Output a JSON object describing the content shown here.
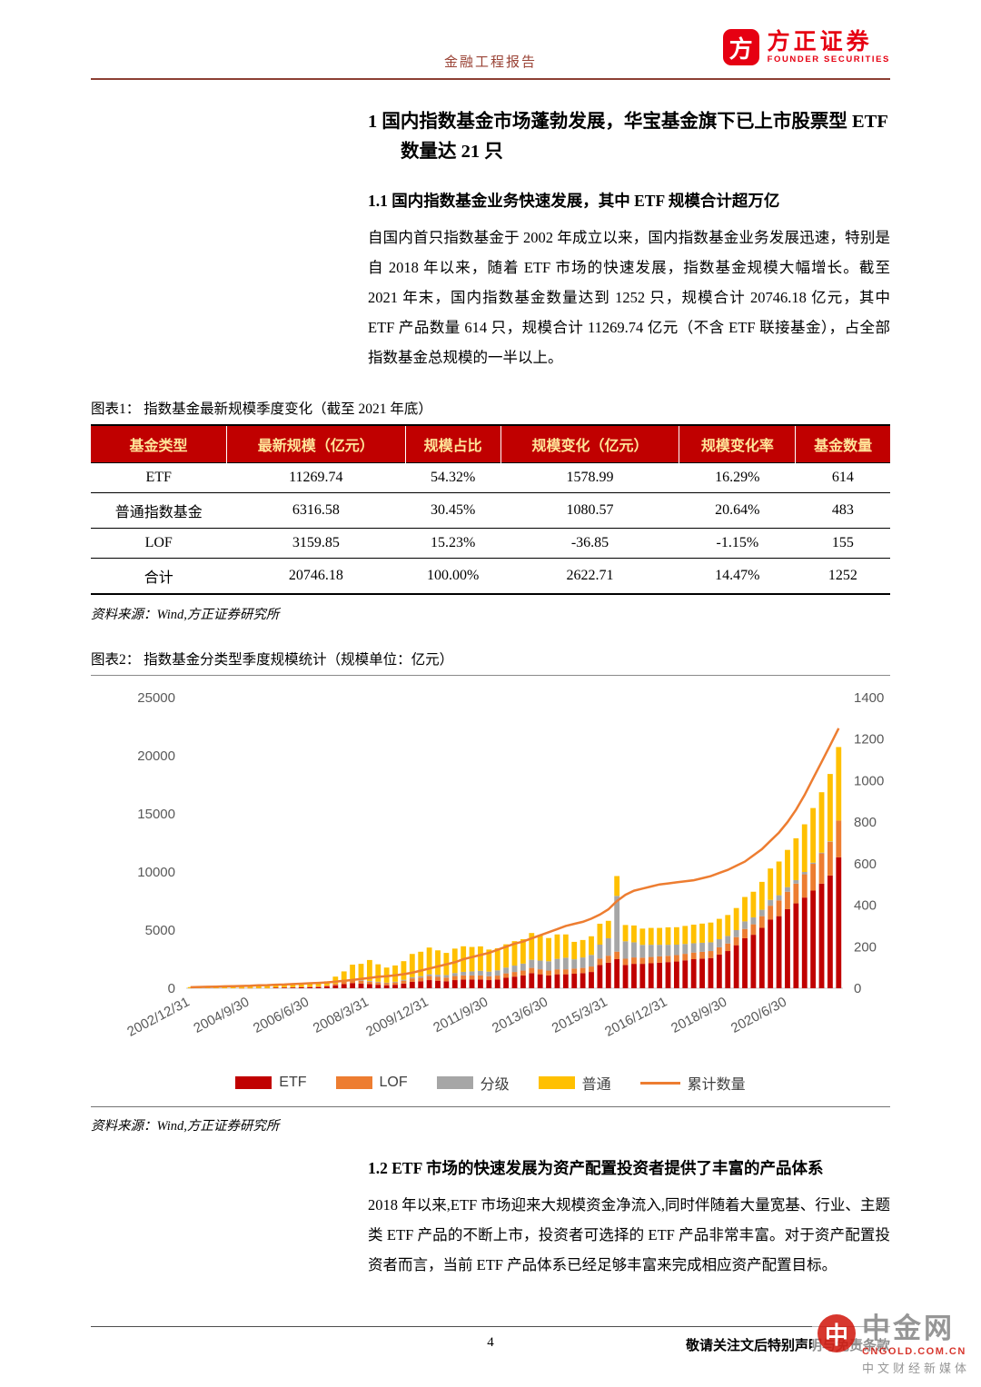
{
  "header": {
    "report_type": "金融工程报告",
    "brand_cn": "方正证券",
    "brand_en": "FOUNDER SECURITIES",
    "logo_glyph": "方"
  },
  "section1": {
    "heading": "1  国内指数基金市场蓬勃发展，华宝基金旗下已上市股票型 ETF 数量达 21 只",
    "sub1_1": {
      "heading": "1.1  国内指数基金业务快速发展，其中 ETF 规模合计超万亿",
      "paragraph": "自国内首只指数基金于 2002 年成立以来，国内指数基金业务发展迅速，特别是自 2018 年以来，随着 ETF 市场的快速发展，指数基金规模大幅增长。截至 2021 年末，国内指数基金数量达到 1252 只，规模合计 20746.18 亿元，其中 ETF 产品数量 614 只，规模合计 11269.74 亿元（不含 ETF 联接基金），占全部指数基金总规模的一半以上。"
    },
    "sub1_2": {
      "heading": "1.2  ETF 市场的快速发展为资产配置投资者提供了丰富的产品体系",
      "paragraph": "2018 年以来,ETF 市场迎来大规模资金净流入,同时伴随着大量宽基、行业、主题类 ETF 产品的不断上市，投资者可选择的 ETF 产品非常丰富。对于资产配置投资者而言，当前 ETF 产品体系已经足够丰富来完成相应资产配置目标。"
    }
  },
  "figure1": {
    "caption": "图表1：  指数基金最新规模季度变化（截至 2021 年底）",
    "table": {
      "headers": [
        "基金类型",
        "最新规模（亿元）",
        "规模占比",
        "规模变化（亿元）",
        "规模变化率",
        "基金数量"
      ],
      "rows": [
        [
          "ETF",
          "11269.74",
          "54.32%",
          "1578.99",
          "16.29%",
          "614"
        ],
        [
          "普通指数基金",
          "6316.58",
          "30.45%",
          "1080.57",
          "20.64%",
          "483"
        ],
        [
          "LOF",
          "3159.85",
          "15.23%",
          "-36.85",
          "-1.15%",
          "155"
        ],
        [
          "合计",
          "20746.18",
          "100.00%",
          "2622.71",
          "14.47%",
          "1252"
        ]
      ]
    },
    "source": "资料来源：Wind,方正证券研究所"
  },
  "figure2": {
    "caption": "图表2：  指数基金分类型季度规模统计（规模单位：亿元）",
    "source": "资料来源：Wind,方正证券研究所"
  },
  "chart_data": {
    "type": "bar",
    "subtype": "stacked-bars-with-line",
    "title": "指数基金分类型季度规模统计（规模单位：亿元）",
    "grid": false,
    "legend_position": "bottom",
    "x_tick_every": 7,
    "left_axis": {
      "min": 0,
      "max": 25000,
      "ticks": [
        0,
        5000,
        10000,
        15000,
        20000,
        25000
      ]
    },
    "right_axis": {
      "min": 0,
      "max": 1400,
      "ticks": [
        0,
        200,
        400,
        600,
        800,
        1000,
        1200,
        1400
      ]
    },
    "categories": [
      "2002/12/31",
      "2003/3/31",
      "2003/6/30",
      "2003/9/30",
      "2003/12/31",
      "2004/3/31",
      "2004/6/30",
      "2004/9/30",
      "2004/12/31",
      "2005/3/31",
      "2005/6/30",
      "2005/9/30",
      "2005/12/31",
      "2006/3/31",
      "2006/6/30",
      "2006/9/30",
      "2006/12/31",
      "2007/3/31",
      "2007/6/30",
      "2007/9/30",
      "2007/12/31",
      "2008/3/31",
      "2008/6/30",
      "2008/9/30",
      "2008/12/31",
      "2009/3/31",
      "2009/6/30",
      "2009/9/30",
      "2009/12/31",
      "2010/3/31",
      "2010/6/30",
      "2010/9/30",
      "2010/12/31",
      "2011/3/31",
      "2011/6/30",
      "2011/9/30",
      "2011/12/31",
      "2012/3/31",
      "2012/6/30",
      "2012/9/30",
      "2012/12/31",
      "2013/3/31",
      "2013/6/30",
      "2013/9/30",
      "2013/12/31",
      "2014/3/31",
      "2014/6/30",
      "2014/9/30",
      "2014/12/31",
      "2015/3/31",
      "2015/6/30",
      "2015/9/30",
      "2015/12/31",
      "2016/3/31",
      "2016/6/30",
      "2016/9/30",
      "2016/12/31",
      "2017/3/31",
      "2017/6/30",
      "2017/9/30",
      "2017/12/31",
      "2018/3/31",
      "2018/6/30",
      "2018/9/30",
      "2018/12/31",
      "2019/3/31",
      "2019/6/30",
      "2019/9/30",
      "2019/12/31",
      "2020/3/31",
      "2020/6/30",
      "2020/9/30",
      "2020/12/31",
      "2021/3/31",
      "2021/6/30",
      "2021/9/30",
      "2021/12/31"
    ],
    "series": [
      {
        "name": "ETF",
        "type": "bar",
        "axis": "left",
        "color": "#c00000",
        "values": [
          0,
          0,
          0,
          0,
          0,
          0,
          0,
          0,
          0,
          0,
          50,
          60,
          65,
          80,
          90,
          100,
          150,
          250,
          350,
          450,
          400,
          350,
          300,
          250,
          300,
          400,
          550,
          600,
          700,
          650,
          600,
          700,
          750,
          750,
          750,
          700,
          750,
          900,
          1000,
          1100,
          1300,
          1200,
          1100,
          1200,
          1200,
          1250,
          1300,
          1400,
          2000,
          2200,
          2500,
          2000,
          2100,
          2100,
          2150,
          2200,
          2250,
          2300,
          2400,
          2500,
          2550,
          2600,
          2900,
          3200,
          3700,
          4300,
          4600,
          5200,
          5900,
          6200,
          6800,
          7300,
          7800,
          8400,
          9000,
          9700,
          11269.74
        ]
      },
      {
        "name": "LOF",
        "type": "bar",
        "axis": "left",
        "color": "#ed7d31",
        "values": [
          0,
          0,
          0,
          0,
          0,
          0,
          10,
          20,
          30,
          30,
          30,
          35,
          40,
          50,
          60,
          70,
          100,
          150,
          200,
          250,
          250,
          220,
          200,
          180,
          200,
          250,
          300,
          320,
          350,
          330,
          320,
          350,
          360,
          350,
          350,
          330,
          340,
          380,
          400,
          420,
          450,
          430,
          420,
          430,
          430,
          440,
          450,
          470,
          550,
          600,
          650,
          540,
          550,
          530,
          540,
          540,
          540,
          550,
          560,
          570,
          580,
          600,
          620,
          650,
          700,
          800,
          900,
          1000,
          1200,
          1350,
          1500,
          1700,
          2000,
          2300,
          2600,
          2900,
          3159.85
        ]
      },
      {
        "name": "分级",
        "type": "bar",
        "axis": "left",
        "color": "#a6a6a6",
        "values": [
          0,
          0,
          0,
          0,
          0,
          0,
          0,
          0,
          0,
          0,
          0,
          0,
          0,
          0,
          0,
          0,
          0,
          0,
          0,
          30,
          50,
          60,
          60,
          50,
          60,
          80,
          100,
          120,
          150,
          180,
          220,
          260,
          300,
          350,
          400,
          400,
          450,
          500,
          550,
          600,
          700,
          750,
          800,
          900,
          1000,
          800,
          900,
          1000,
          1200,
          1500,
          4800,
          1500,
          1300,
          1100,
          1050,
          1000,
          950,
          900,
          850,
          800,
          780,
          750,
          700,
          650,
          600,
          650,
          600,
          550,
          500,
          450,
          400,
          300,
          200,
          100,
          60,
          30,
          0
        ]
      },
      {
        "name": "普通",
        "type": "bar",
        "axis": "left",
        "color": "#ffc000",
        "values": [
          100,
          100,
          110,
          120,
          130,
          140,
          150,
          150,
          160,
          160,
          170,
          170,
          180,
          200,
          220,
          250,
          350,
          600,
          900,
          1300,
          1400,
          1800,
          1500,
          1300,
          1400,
          1600,
          2000,
          2100,
          2300,
          2100,
          1900,
          2100,
          2200,
          2100,
          2100,
          1900,
          1900,
          2000,
          2100,
          2100,
          2300,
          2200,
          2000,
          2100,
          2000,
          1500,
          1500,
          1600,
          1800,
          1500,
          1700,
          1400,
          1450,
          1400,
          1450,
          1450,
          1500,
          1500,
          1550,
          1600,
          1650,
          1700,
          1750,
          1800,
          1900,
          2100,
          2200,
          2400,
          2700,
          2900,
          3200,
          3600,
          4100,
          4700,
          5200,
          5800,
          6316.58
        ]
      },
      {
        "name": "累计数量",
        "type": "line",
        "axis": "right",
        "color": "#ed7d31",
        "values": [
          5,
          6,
          7,
          8,
          9,
          10,
          11,
          12,
          14,
          15,
          17,
          18,
          20,
          22,
          24,
          26,
          28,
          32,
          36,
          40,
          45,
          50,
          55,
          58,
          62,
          68,
          75,
          85,
          95,
          105,
          115,
          125,
          140,
          150,
          160,
          170,
          185,
          200,
          215,
          225,
          240,
          255,
          270,
          285,
          300,
          310,
          320,
          335,
          355,
          380,
          420,
          450,
          470,
          480,
          490,
          500,
          505,
          510,
          515,
          520,
          530,
          540,
          555,
          570,
          590,
          610,
          640,
          670,
          710,
          750,
          800,
          860,
          930,
          1010,
          1090,
          1170,
          1252
        ]
      }
    ]
  },
  "footer": {
    "page_number": "4",
    "disclaimer": "敬请关注文后特别声明与免责条款"
  },
  "watermark": {
    "logo_glyph": "中",
    "name": "中金网",
    "domain": "CNGOLD.COM.CN",
    "tagline": "中文财经新媒体"
  },
  "colors": {
    "brand_red": "#e60012",
    "header_rule": "#8c3f33",
    "table_header_bg": "#c00000",
    "table_header_text": "#ffe599",
    "watermark_red": "#d5281f"
  }
}
